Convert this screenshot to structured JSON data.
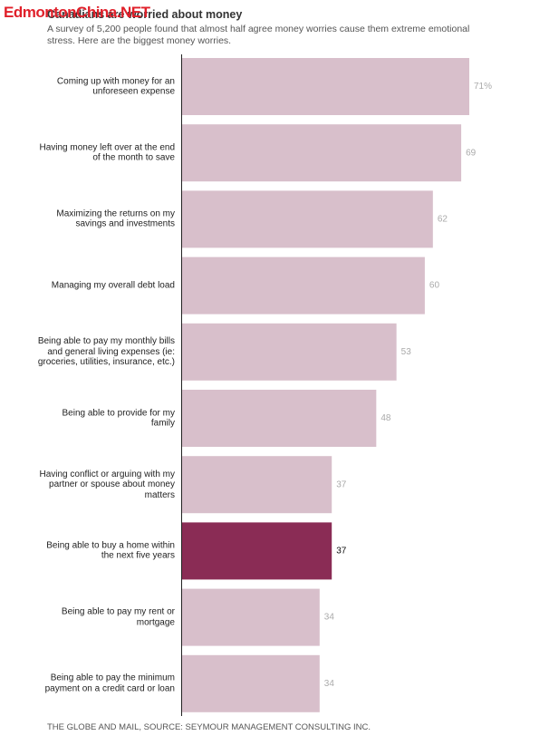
{
  "chart_data": {
    "type": "bar",
    "orientation": "horizontal",
    "title": "Canadians are worried about money",
    "watermark": "EdmontonChina.NET",
    "subtitle": "A survey of 5,200 people found that almost half agree money worries cause them extreme emotional stress. Here are the biggest money worries.",
    "source": "THE GLOBE AND MAIL, SOURCE: SEYMOUR MANAGEMENT CONSULTING INC.",
    "categories": [
      "Coming up with money for an unforeseen expense",
      "Having money left over at the end of the month to save",
      "Maximizing the returns on my savings and investments",
      "Managing my overall debt load",
      "Being able to pay my monthly bills and general living expenses (ie: groceries, utilities, insurance, etc.)",
      "Being able to provide for my family",
      "Having conflict or arguing with my partner or spouse about money matters",
      "Being able to buy a home within the next five years",
      "Being able to pay my rent or mortgage",
      "Being able to pay the minimum payment on a credit card or loan"
    ],
    "values": [
      71,
      69,
      62,
      60,
      53,
      48,
      37,
      37,
      34,
      34
    ],
    "value_labels": [
      "71%",
      "69",
      "62",
      "60",
      "53",
      "48",
      "37",
      "37",
      "34",
      "34"
    ],
    "color": "#d8bfcb",
    "highlight_color": "#8a2c55",
    "highlight_index": 7
  }
}
